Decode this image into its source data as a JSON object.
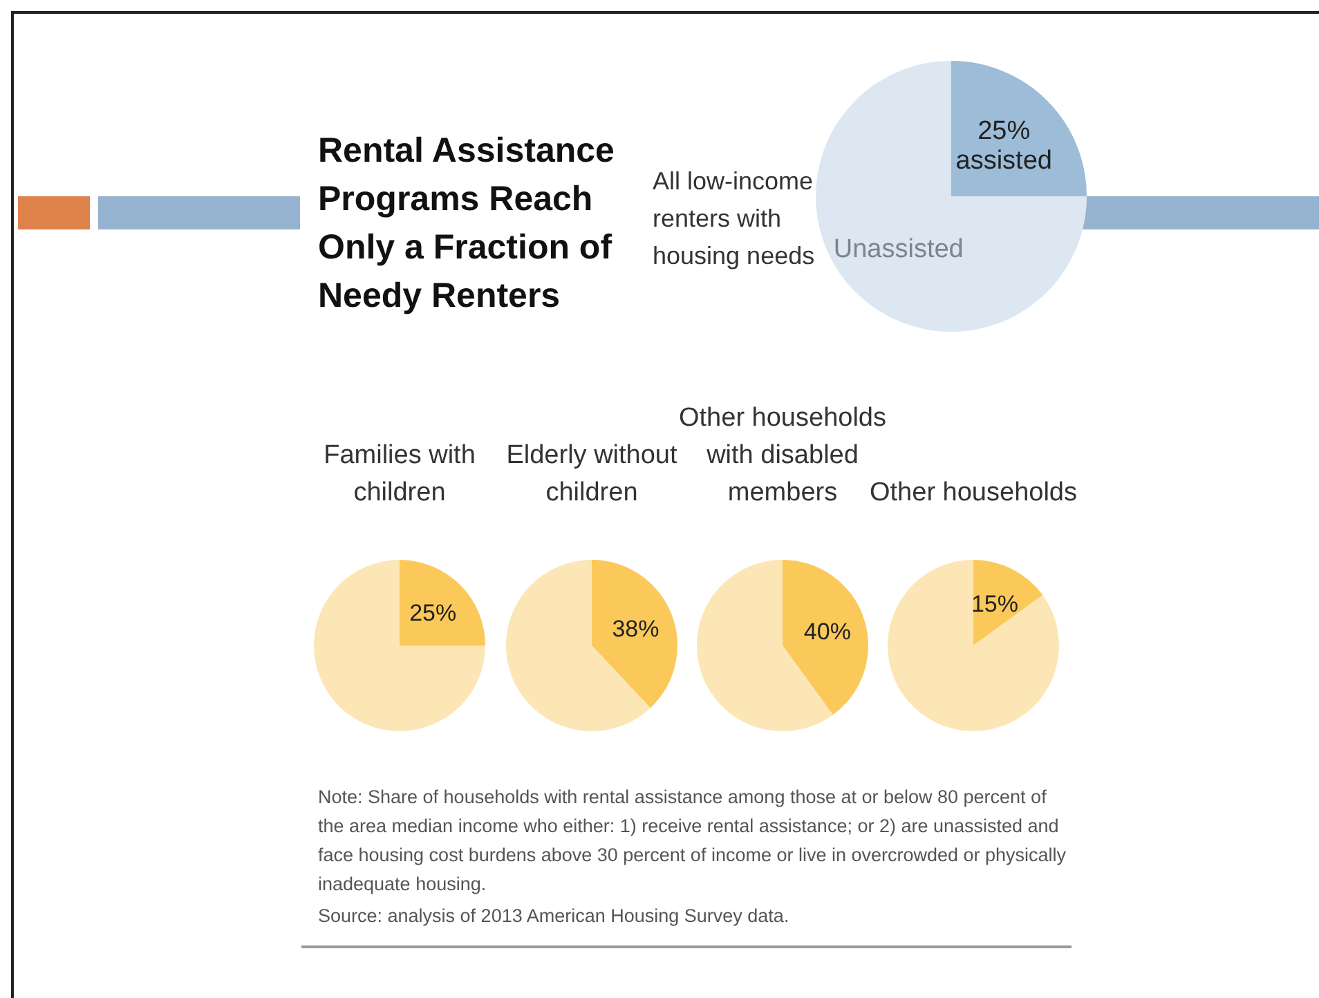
{
  "chart_data": [
    {
      "type": "pie",
      "title": "Rental Assistance Programs Reach Only a Fraction of Needy Renters",
      "subtitle": "All low-income renters with housing needs",
      "categories": [
        "assisted",
        "Unassisted"
      ],
      "values": [
        25,
        75
      ],
      "colors": [
        "#9dbcd8",
        "#dce7f2"
      ],
      "value_labels": [
        "25%",
        null
      ]
    },
    {
      "type": "pie",
      "title": "Families with children",
      "categories": [
        null,
        null
      ],
      "values": [
        25,
        75
      ],
      "colors": [
        "#fbc95a",
        "#fde6b5"
      ],
      "value_labels": [
        "25%",
        null
      ]
    },
    {
      "type": "pie",
      "title": "Elderly without children",
      "categories": [
        null,
        null
      ],
      "values": [
        38,
        62
      ],
      "colors": [
        "#fbc95a",
        "#fde6b5"
      ],
      "value_labels": [
        "38%",
        null
      ]
    },
    {
      "type": "pie",
      "title": "Other households with disabled members",
      "categories": [
        null,
        null
      ],
      "values": [
        40,
        60
      ],
      "colors": [
        "#fbc95a",
        "#fde6b5"
      ],
      "value_labels": [
        "40%",
        null
      ]
    },
    {
      "type": "pie",
      "title": "Other households",
      "categories": [
        null,
        null
      ],
      "values": [
        15,
        85
      ],
      "colors": [
        "#fbc95a",
        "#fde6b5"
      ],
      "value_labels": [
        "15%",
        null
      ],
      "annotations": [
        "Note: Share of households with rental assistance among those at or below 80 percent of the area median income who either: 1) receive rental assistance; or 2) are unassisted and face housing cost burdens above 30 percent of income or live in overcrowded or physically inadequate housing.",
        "Source: analysis of 2013 American Housing Survey data."
      ]
    }
  ]
}
